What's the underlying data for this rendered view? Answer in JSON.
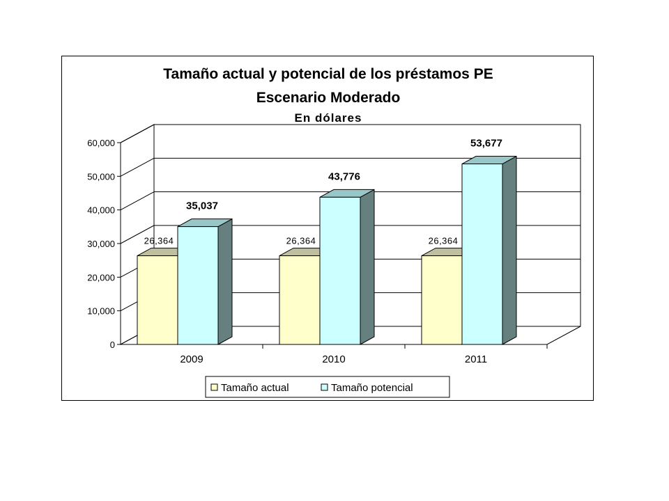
{
  "chart_data": {
    "type": "bar",
    "title": "Tamaño actual y potencial de los préstamos PE",
    "subtitle": "Escenario Moderado",
    "subtitle2": "En dólares",
    "categories": [
      "2009",
      "2010",
      "2011"
    ],
    "series": [
      {
        "name": "Tamaño actual",
        "values": [
          26364,
          26364,
          26364
        ],
        "labels": [
          "26,364",
          "26,364",
          "26,364"
        ],
        "color": "#ffffcc"
      },
      {
        "name": "Tamaño potencial",
        "values": [
          35037,
          43776,
          53677
        ],
        "labels": [
          "35,037",
          "43,776",
          "53,677"
        ],
        "color": "#ccffff"
      }
    ],
    "yticks": [
      "0",
      "10,000",
      "20,000",
      "30,000",
      "40,000",
      "50,000",
      "60,000"
    ],
    "ylim": [
      0,
      60000
    ],
    "grid": true,
    "legend": "bottom",
    "colors": {
      "actual_front": "#ffffcc",
      "actual_top": "#c0c0a0",
      "actual_side": "#9a9a7a",
      "potencial_front": "#ccffff",
      "potencial_top": "#99c6c6",
      "potencial_side": "#668080",
      "wall": "#ffffff",
      "grid": "#000000"
    }
  }
}
